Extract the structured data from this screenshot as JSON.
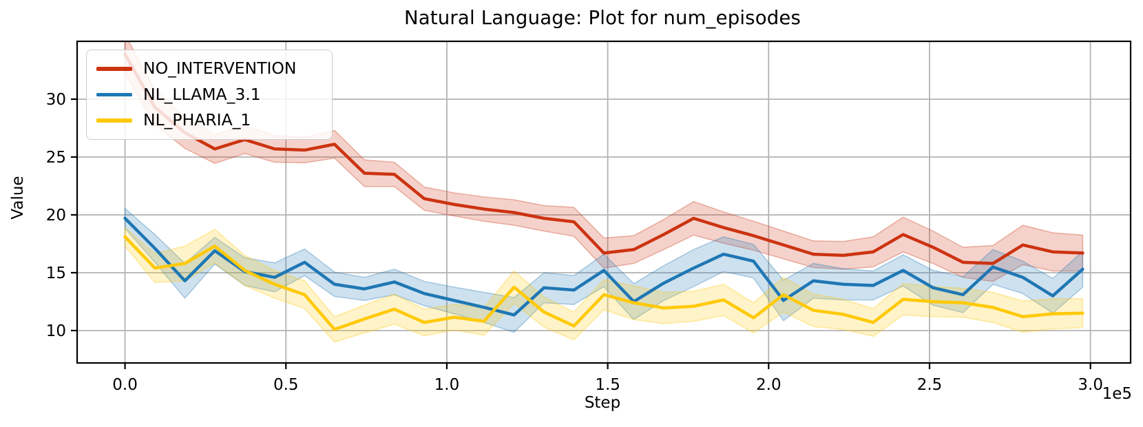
{
  "figure": {
    "title": "Natural Language: Plot for num_episodes",
    "xlabel": "Step",
    "ylabel": "Value",
    "offset_label": "1e5"
  },
  "legend": {
    "position": "upper left",
    "items": [
      {
        "label": "NO_INTERVENTION",
        "color": "#cc3311"
      },
      {
        "label": "NL_LLAMA_3.1",
        "color": "#1f77b4"
      },
      {
        "label": "NL_PHARIA_1",
        "color": "#ffc907"
      }
    ]
  },
  "chart_data": {
    "type": "line",
    "title": "Natural Language: Plot for num_episodes",
    "xlabel": "Step",
    "ylabel": "Value",
    "x_offset_multiplier": "1e5",
    "grid": true,
    "grid_color": "#b3b3b3",
    "legend_position": "upper left",
    "xlim": [
      -14880,
      312480
    ],
    "ylim": [
      7.2,
      35.0
    ],
    "x_ticks": {
      "values": [
        0,
        50000,
        100000,
        150000,
        200000,
        250000,
        300000
      ],
      "labels": [
        "0.0",
        "0.5",
        "1.0",
        "1.5",
        "2.0",
        "2.5",
        "3.0"
      ]
    },
    "y_ticks": {
      "values": [
        10,
        15,
        20,
        25,
        30
      ],
      "labels": [
        "10",
        "15",
        "20",
        "25",
        "30"
      ]
    },
    "x": [
      0,
      9300,
      18600,
      27900,
      37200,
      46500,
      55800,
      65100,
      74400,
      83700,
      93000,
      102300,
      111600,
      120900,
      130200,
      139500,
      148800,
      158100,
      167400,
      176700,
      186000,
      195300,
      204600,
      213900,
      223200,
      232500,
      241800,
      251100,
      260400,
      269700,
      279000,
      288300,
      297600
    ],
    "series": [
      {
        "name": "NO_INTERVENTION",
        "color": "#cc3311",
        "values": [
          33.9,
          29.3,
          27.1,
          25.7,
          26.5,
          25.7,
          25.6,
          26.1,
          23.6,
          23.5,
          21.4,
          20.9,
          20.5,
          20.2,
          19.7,
          19.4,
          16.7,
          17.0,
          18.3,
          19.7,
          18.9,
          18.2,
          17.4,
          16.6,
          16.5,
          16.8,
          18.3,
          17.2,
          15.9,
          15.8,
          17.4,
          16.8,
          16.7
        ],
        "band_halfwidth": [
          1.7,
          1.5,
          1.35,
          1.25,
          1.2,
          1.15,
          1.1,
          1.2,
          1.15,
          1.05,
          1.0,
          1.0,
          1.05,
          1.1,
          1.1,
          1.25,
          1.3,
          1.2,
          1.3,
          1.45,
          1.35,
          1.25,
          1.2,
          1.15,
          1.2,
          1.3,
          1.5,
          1.4,
          1.3,
          1.55,
          1.7,
          1.65,
          1.55
        ]
      },
      {
        "name": "NL_LLAMA_3.1",
        "color": "#1f77b4",
        "values": [
          19.7,
          17.1,
          14.3,
          16.9,
          15.1,
          14.6,
          15.9,
          14.0,
          13.6,
          14.2,
          13.2,
          12.6,
          12.0,
          11.35,
          13.7,
          13.5,
          15.2,
          12.5,
          14.1,
          15.4,
          16.6,
          16.0,
          12.6,
          14.3,
          14.0,
          13.9,
          15.2,
          13.7,
          13.1,
          15.5,
          14.6,
          13.0,
          15.3
        ],
        "band_halfwidth": [
          0.85,
          1.2,
          1.5,
          1.15,
          1.2,
          1.25,
          1.15,
          1.05,
          1.0,
          1.1,
          1.05,
          1.15,
          1.3,
          1.5,
          1.3,
          1.25,
          1.4,
          1.55,
          1.5,
          1.6,
          1.5,
          1.45,
          1.75,
          1.5,
          1.35,
          1.25,
          1.35,
          1.5,
          1.55,
          1.5,
          1.4,
          1.5,
          1.55
        ]
      },
      {
        "name": "NL_PHARIA_1",
        "color": "#ffc907",
        "values": [
          18.1,
          15.4,
          15.8,
          17.3,
          15.2,
          14.0,
          13.1,
          10.1,
          11.0,
          11.85,
          10.7,
          11.15,
          10.8,
          13.75,
          11.6,
          10.4,
          13.1,
          12.4,
          11.95,
          12.1,
          12.65,
          11.1,
          13.1,
          11.75,
          11.4,
          10.7,
          12.7,
          12.5,
          12.4,
          12.0,
          11.2,
          11.45,
          11.5
        ],
        "band_halfwidth": [
          0.8,
          1.25,
          1.5,
          1.45,
          1.3,
          1.2,
          1.2,
          1.1,
          1.2,
          1.3,
          1.15,
          1.1,
          1.2,
          1.4,
          1.3,
          1.2,
          1.3,
          1.45,
          1.35,
          1.3,
          1.35,
          1.3,
          1.5,
          1.4,
          1.3,
          1.2,
          1.35,
          1.3,
          1.25,
          1.3,
          1.35,
          1.3,
          1.25
        ]
      }
    ]
  }
}
